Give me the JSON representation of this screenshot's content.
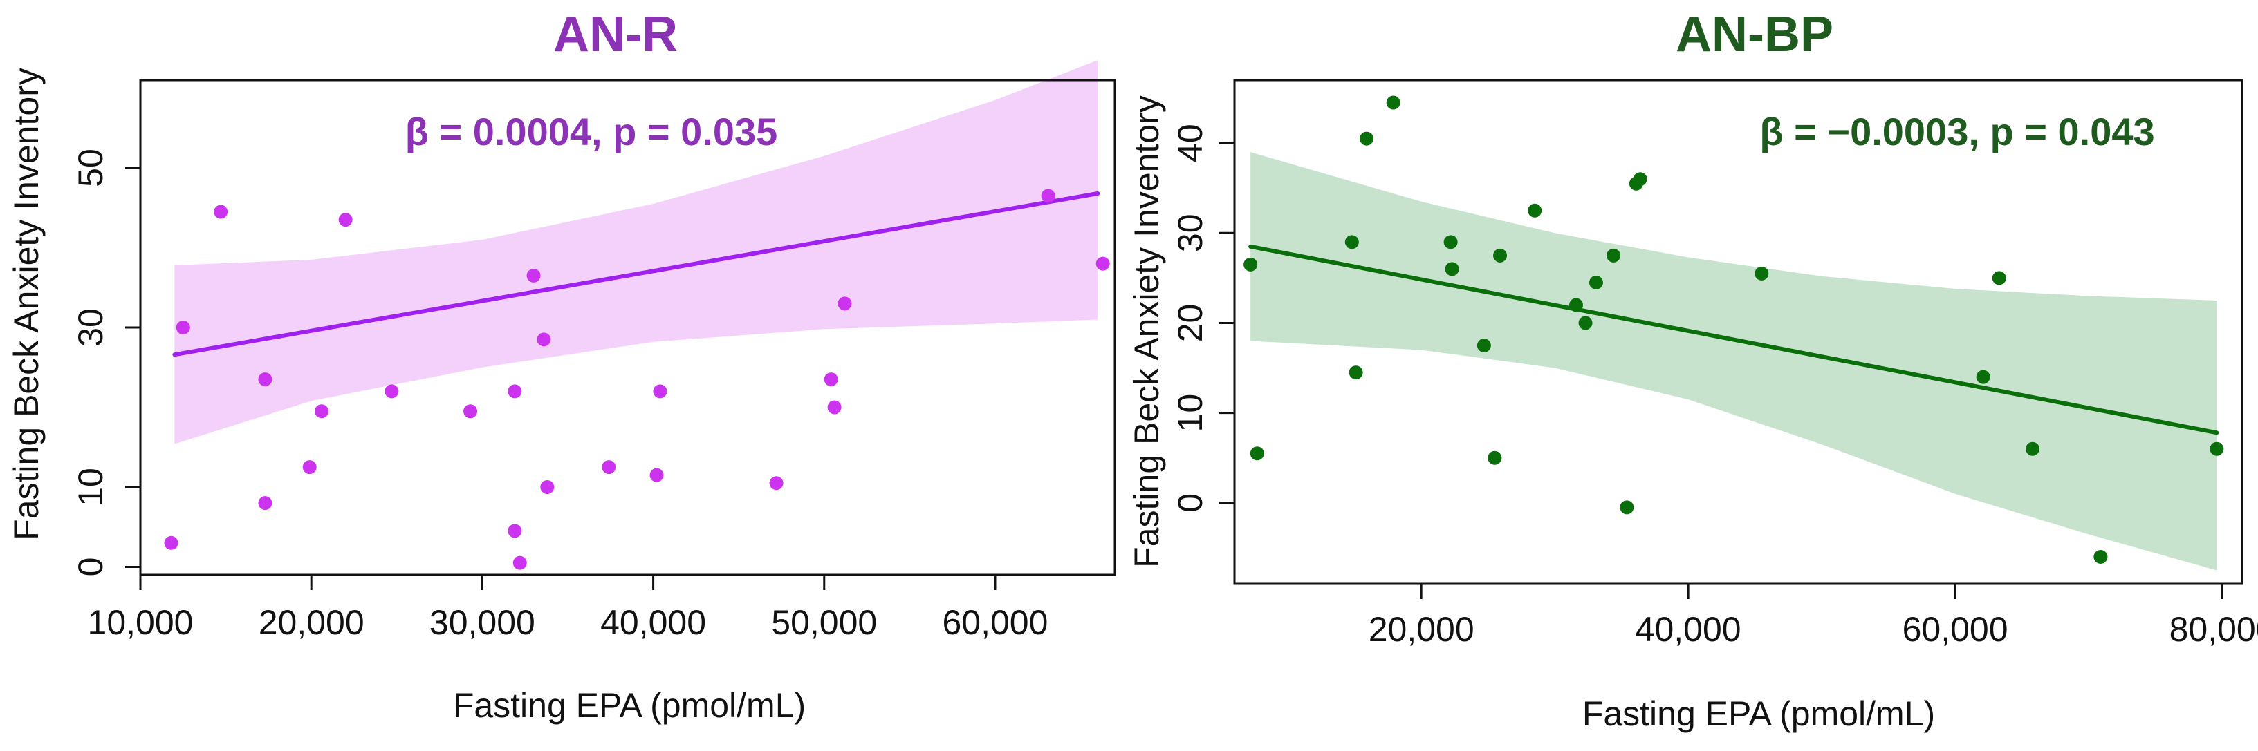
{
  "colors": {
    "ar_point": "#cc33ee",
    "ar_line": "#a020f0",
    "ar_band": "#f3d1fb",
    "ar_title": "#8b32b5",
    "bp_point": "#0a6e0a",
    "bp_line": "#0a6e0a",
    "bp_band": "#c7e3cd",
    "bp_title": "#1f5a1f"
  },
  "chart_data": [
    {
      "type": "scatter",
      "title": "AN-R",
      "xlabel": "Fasting EPA (pmol/mL)",
      "ylabel": "Fasting Beck Anxiety Inventory",
      "annotation": "β = 0.0004, p = 0.035",
      "xlim": [
        10000,
        67000
      ],
      "ylim": [
        -1,
        61
      ],
      "xticks": [
        10000,
        20000,
        30000,
        40000,
        50000,
        60000
      ],
      "xtick_labels": [
        "10,000",
        "20,000",
        "30,000",
        "40,000",
        "50,000",
        "60,000"
      ],
      "yticks": [
        0,
        10,
        30,
        50
      ],
      "ytick_labels": [
        "0",
        "10",
        "30",
        "50"
      ],
      "points": [
        [
          11800,
          3
        ],
        [
          12500,
          30
        ],
        [
          14700,
          44.5
        ],
        [
          17300,
          23.5
        ],
        [
          17300,
          8
        ],
        [
          19900,
          12.5
        ],
        [
          20600,
          19.5
        ],
        [
          22000,
          43.5
        ],
        [
          24700,
          22
        ],
        [
          29300,
          19.5
        ],
        [
          31900,
          22
        ],
        [
          31900,
          4.5
        ],
        [
          32200,
          0.5
        ],
        [
          33000,
          36.5
        ],
        [
          33600,
          28.5
        ],
        [
          33800,
          10
        ],
        [
          37400,
          12.5
        ],
        [
          40200,
          11.5
        ],
        [
          40400,
          22
        ],
        [
          47200,
          10.5
        ],
        [
          50400,
          23.5
        ],
        [
          50600,
          20
        ],
        [
          51200,
          33
        ],
        [
          63100,
          46.5
        ],
        [
          66300,
          38
        ]
      ],
      "fit": {
        "x0": 12000,
        "y0": 26.6,
        "x1": 66000,
        "y1": 46.8
      },
      "ci_upper": [
        [
          12000,
          37.8
        ],
        [
          20000,
          38.5
        ],
        [
          30000,
          41
        ],
        [
          40000,
          45.5
        ],
        [
          50000,
          51.5
        ],
        [
          60000,
          58.5
        ],
        [
          66000,
          63.5
        ]
      ],
      "ci_lower": [
        [
          12000,
          15.4
        ],
        [
          20000,
          20.8
        ],
        [
          30000,
          25
        ],
        [
          40000,
          28.2
        ],
        [
          50000,
          29.8
        ],
        [
          60000,
          30.5
        ],
        [
          66000,
          31
        ]
      ]
    },
    {
      "type": "scatter",
      "title": "AN-BP",
      "xlabel": "Fasting EPA (pmol/mL)",
      "ylabel": "Fasting Beck Anxiety Inventory",
      "annotation": "β = −0.0003, p = 0.043",
      "xlim": [
        6000,
        81500
      ],
      "ylim": [
        -9,
        47
      ],
      "xticks": [
        20000,
        40000,
        60000,
        80000
      ],
      "xtick_labels": [
        "20,000",
        "40,000",
        "60,000",
        "80,000"
      ],
      "yticks": [
        0,
        10,
        20,
        30,
        40
      ],
      "ytick_labels": [
        "0",
        "10",
        "20",
        "30",
        "40"
      ],
      "points": [
        [
          7200,
          26.5
        ],
        [
          7700,
          5.5
        ],
        [
          14800,
          29
        ],
        [
          15100,
          14.5
        ],
        [
          15900,
          40.5
        ],
        [
          17900,
          44.5
        ],
        [
          22200,
          29
        ],
        [
          22300,
          26
        ],
        [
          24700,
          17.5
        ],
        [
          25500,
          5
        ],
        [
          25900,
          27.5
        ],
        [
          28500,
          32.5
        ],
        [
          31600,
          22
        ],
        [
          32300,
          20
        ],
        [
          33100,
          24.5
        ],
        [
          34400,
          27.5
        ],
        [
          35400,
          -0.5
        ],
        [
          36100,
          35.5
        ],
        [
          36400,
          36
        ],
        [
          45500,
          25.5
        ],
        [
          62100,
          14
        ],
        [
          63300,
          25
        ],
        [
          65800,
          6
        ],
        [
          70900,
          -6
        ],
        [
          79600,
          6
        ]
      ],
      "fit": {
        "x0": 7200,
        "y0": 28.5,
        "x1": 79600,
        "y1": 7.8
      },
      "ci_upper": [
        [
          7200,
          39
        ],
        [
          20000,
          33.5
        ],
        [
          30000,
          30
        ],
        [
          40000,
          27.3
        ],
        [
          50000,
          25.2
        ],
        [
          60000,
          23.8
        ],
        [
          70000,
          23
        ],
        [
          79600,
          22.5
        ]
      ],
      "ci_lower": [
        [
          7200,
          18
        ],
        [
          20000,
          17
        ],
        [
          30000,
          15
        ],
        [
          40000,
          11.5
        ],
        [
          50000,
          6.5
        ],
        [
          60000,
          1
        ],
        [
          70000,
          -3.5
        ],
        [
          79600,
          -7.5
        ]
      ]
    }
  ]
}
